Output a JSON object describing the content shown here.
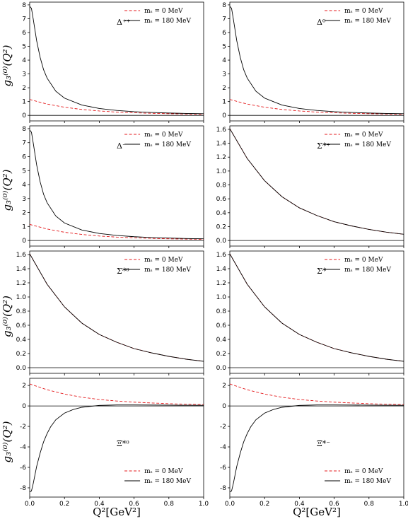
{
  "figure": {
    "ylabel": "g₃⁽⁰⁾(Q²)",
    "xlabel": "Q²[GeV²]",
    "legend_labels": [
      "mₛ = 0 MeV",
      "mₛ = 180 MeV"
    ],
    "colors": {
      "ms0": "#e41a1c",
      "ms180": "#000000"
    }
  },
  "chart_data": [
    {
      "type": "line",
      "annotation": "Δ⁺⁺",
      "legend": "top-right",
      "xlim": [
        0,
        1
      ],
      "ylim": [
        -0.4,
        8.2
      ],
      "xticks": [
        0.0,
        0.2,
        0.4,
        0.6,
        0.8,
        1.0
      ],
      "yticks": [
        0,
        1,
        2,
        3,
        4,
        5,
        6,
        7,
        8
      ],
      "series": [
        {
          "name": "mₛ = 0 MeV",
          "style": "dashed",
          "x": [
            0,
            0.1,
            0.2,
            0.3,
            0.4,
            0.5,
            0.6,
            0.7,
            0.8,
            0.9,
            1.0
          ],
          "y": [
            1.15,
            0.82,
            0.59,
            0.43,
            0.32,
            0.24,
            0.19,
            0.15,
            0.12,
            0.1,
            0.08
          ]
        },
        {
          "name": "mₛ = 180 MeV",
          "style": "solid",
          "x": [
            0,
            0.01,
            0.02,
            0.04,
            0.06,
            0.08,
            0.1,
            0.15,
            0.2,
            0.3,
            0.4,
            0.5,
            0.6,
            0.7,
            0.8,
            0.9,
            1.0
          ],
          "y": [
            7.9,
            7.75,
            7.0,
            5.4,
            4.2,
            3.3,
            2.7,
            1.75,
            1.25,
            0.75,
            0.5,
            0.36,
            0.27,
            0.21,
            0.17,
            0.14,
            0.12
          ]
        }
      ]
    },
    {
      "type": "line",
      "annotation": "Δ⁰",
      "legend": "top-right",
      "xlim": [
        0,
        1
      ],
      "ylim": [
        -0.4,
        8.2
      ],
      "xticks": [
        0.0,
        0.2,
        0.4,
        0.6,
        0.8,
        1.0
      ],
      "yticks": [
        0,
        1,
        2,
        3,
        4,
        5,
        6,
        7,
        8
      ],
      "series": [
        {
          "name": "mₛ = 0 MeV",
          "style": "dashed",
          "x": [
            0,
            0.1,
            0.2,
            0.3,
            0.4,
            0.5,
            0.6,
            0.7,
            0.8,
            0.9,
            1.0
          ],
          "y": [
            1.15,
            0.82,
            0.59,
            0.43,
            0.32,
            0.24,
            0.19,
            0.15,
            0.12,
            0.1,
            0.08
          ]
        },
        {
          "name": "mₛ = 180 MeV",
          "style": "solid",
          "x": [
            0,
            0.01,
            0.02,
            0.04,
            0.06,
            0.08,
            0.1,
            0.15,
            0.2,
            0.3,
            0.4,
            0.5,
            0.6,
            0.7,
            0.8,
            0.9,
            1.0
          ],
          "y": [
            7.9,
            7.75,
            7.0,
            5.4,
            4.2,
            3.3,
            2.7,
            1.75,
            1.25,
            0.75,
            0.5,
            0.36,
            0.27,
            0.21,
            0.17,
            0.14,
            0.12
          ]
        }
      ]
    },
    {
      "type": "line",
      "annotation": "Δ⁻",
      "legend": "top-right",
      "xlim": [
        0,
        1
      ],
      "ylim": [
        -0.4,
        8.2
      ],
      "xticks": [
        0.0,
        0.2,
        0.4,
        0.6,
        0.8,
        1.0
      ],
      "yticks": [
        0,
        1,
        2,
        3,
        4,
        5,
        6,
        7,
        8
      ],
      "series": [
        {
          "name": "mₛ = 0 MeV",
          "style": "dashed",
          "x": [
            0,
            0.1,
            0.2,
            0.3,
            0.4,
            0.5,
            0.6,
            0.7,
            0.8,
            0.9,
            1.0
          ],
          "y": [
            1.15,
            0.82,
            0.59,
            0.43,
            0.32,
            0.24,
            0.19,
            0.15,
            0.12,
            0.1,
            0.08
          ]
        },
        {
          "name": "mₛ = 180 MeV",
          "style": "solid",
          "x": [
            0,
            0.01,
            0.02,
            0.04,
            0.06,
            0.08,
            0.1,
            0.15,
            0.2,
            0.3,
            0.4,
            0.5,
            0.6,
            0.7,
            0.8,
            0.9,
            1.0
          ],
          "y": [
            7.9,
            7.75,
            7.0,
            5.4,
            4.2,
            3.3,
            2.7,
            1.75,
            1.25,
            0.75,
            0.5,
            0.36,
            0.27,
            0.21,
            0.17,
            0.14,
            0.12
          ]
        }
      ]
    },
    {
      "type": "line",
      "annotation": "Σ*⁺",
      "legend": "top-right",
      "xlim": [
        0,
        1
      ],
      "ylim": [
        -0.08,
        1.65
      ],
      "xticks": [
        0.0,
        0.2,
        0.4,
        0.6,
        0.8,
        1.0
      ],
      "yticks": [
        0.0,
        0.2,
        0.4,
        0.6,
        0.8,
        1.0,
        1.2,
        1.4,
        1.6
      ],
      "series": [
        {
          "name": "mₛ = 0 MeV",
          "style": "dashed",
          "x": [
            0,
            0.1,
            0.2,
            0.3,
            0.4,
            0.5,
            0.6,
            0.7,
            0.8,
            0.9,
            1.0
          ],
          "y": [
            1.61,
            1.18,
            0.86,
            0.63,
            0.47,
            0.36,
            0.27,
            0.21,
            0.16,
            0.12,
            0.09
          ]
        },
        {
          "name": "mₛ = 180 MeV",
          "style": "solid",
          "x": [
            0,
            0.1,
            0.2,
            0.3,
            0.4,
            0.5,
            0.6,
            0.7,
            0.8,
            0.9,
            1.0
          ],
          "y": [
            1.61,
            1.18,
            0.86,
            0.63,
            0.47,
            0.36,
            0.27,
            0.21,
            0.16,
            0.12,
            0.09
          ]
        }
      ]
    },
    {
      "type": "line",
      "annotation": "Σ*⁰",
      "legend": "top-right",
      "xlim": [
        0,
        1
      ],
      "ylim": [
        -0.08,
        1.65
      ],
      "xticks": [
        0.0,
        0.2,
        0.4,
        0.6,
        0.8,
        1.0
      ],
      "yticks": [
        0.0,
        0.2,
        0.4,
        0.6,
        0.8,
        1.0,
        1.2,
        1.4,
        1.6
      ],
      "series": [
        {
          "name": "mₛ = 0 MeV",
          "style": "dashed",
          "x": [
            0,
            0.1,
            0.2,
            0.3,
            0.4,
            0.5,
            0.6,
            0.7,
            0.8,
            0.9,
            1.0
          ],
          "y": [
            1.61,
            1.18,
            0.86,
            0.63,
            0.47,
            0.36,
            0.27,
            0.21,
            0.16,
            0.12,
            0.09
          ]
        },
        {
          "name": "mₛ = 180 MeV",
          "style": "solid",
          "x": [
            0,
            0.1,
            0.2,
            0.3,
            0.4,
            0.5,
            0.6,
            0.7,
            0.8,
            0.9,
            1.0
          ],
          "y": [
            1.61,
            1.18,
            0.86,
            0.63,
            0.47,
            0.36,
            0.27,
            0.21,
            0.16,
            0.12,
            0.09
          ]
        }
      ]
    },
    {
      "type": "line",
      "annotation": "Σ*⁻",
      "legend": "top-right",
      "xlim": [
        0,
        1
      ],
      "ylim": [
        -0.08,
        1.65
      ],
      "xticks": [
        0.0,
        0.2,
        0.4,
        0.6,
        0.8,
        1.0
      ],
      "yticks": [
        0.0,
        0.2,
        0.4,
        0.6,
        0.8,
        1.0,
        1.2,
        1.4,
        1.6
      ],
      "series": [
        {
          "name": "mₛ = 0 MeV",
          "style": "dashed",
          "x": [
            0,
            0.1,
            0.2,
            0.3,
            0.4,
            0.5,
            0.6,
            0.7,
            0.8,
            0.9,
            1.0
          ],
          "y": [
            1.61,
            1.18,
            0.86,
            0.63,
            0.47,
            0.36,
            0.27,
            0.21,
            0.16,
            0.12,
            0.09
          ]
        },
        {
          "name": "mₛ = 180 MeV",
          "style": "solid",
          "x": [
            0,
            0.1,
            0.2,
            0.3,
            0.4,
            0.5,
            0.6,
            0.7,
            0.8,
            0.9,
            1.0
          ],
          "y": [
            1.61,
            1.18,
            0.86,
            0.63,
            0.47,
            0.36,
            0.27,
            0.21,
            0.16,
            0.12,
            0.09
          ]
        }
      ]
    },
    {
      "type": "line",
      "annotation": "Ξ*⁰",
      "legend": "bottom-right",
      "xlim": [
        0,
        1
      ],
      "ylim": [
        -8.9,
        2.7
      ],
      "xticks": [
        0.0,
        0.2,
        0.4,
        0.6,
        0.8,
        1.0
      ],
      "yticks": [
        -8,
        -6,
        -4,
        -2,
        0,
        2
      ],
      "series": [
        {
          "name": "mₛ = 0 MeV",
          "style": "dashed",
          "x": [
            0,
            0.1,
            0.2,
            0.3,
            0.4,
            0.5,
            0.6,
            0.7,
            0.8,
            0.9,
            1.0
          ],
          "y": [
            2.15,
            1.58,
            1.16,
            0.85,
            0.63,
            0.48,
            0.37,
            0.29,
            0.22,
            0.17,
            0.13
          ]
        },
        {
          "name": "mₛ = 180 MeV",
          "style": "solid",
          "x": [
            0,
            0.01,
            0.02,
            0.04,
            0.06,
            0.08,
            0.1,
            0.12,
            0.15,
            0.2,
            0.25,
            0.3,
            0.4,
            0.5,
            0.6,
            0.7,
            0.8,
            0.9,
            1.0
          ],
          "y": [
            -8.4,
            -8.3,
            -7.6,
            -5.9,
            -4.6,
            -3.5,
            -2.7,
            -2.05,
            -1.35,
            -0.7,
            -0.35,
            -0.13,
            0.05,
            0.1,
            0.1,
            0.09,
            0.08,
            0.07,
            0.06
          ]
        }
      ]
    },
    {
      "type": "line",
      "annotation": "Ξ*⁻",
      "legend": "bottom-right",
      "xlim": [
        0,
        1
      ],
      "ylim": [
        -8.9,
        2.7
      ],
      "xticks": [
        0.0,
        0.2,
        0.4,
        0.6,
        0.8,
        1.0
      ],
      "yticks": [
        -8,
        -6,
        -4,
        -2,
        0,
        2
      ],
      "series": [
        {
          "name": "mₛ = 0 MeV",
          "style": "dashed",
          "x": [
            0,
            0.1,
            0.2,
            0.3,
            0.4,
            0.5,
            0.6,
            0.7,
            0.8,
            0.9,
            1.0
          ],
          "y": [
            2.15,
            1.58,
            1.16,
            0.85,
            0.63,
            0.48,
            0.37,
            0.29,
            0.22,
            0.17,
            0.13
          ]
        },
        {
          "name": "mₛ = 180 MeV",
          "style": "solid",
          "x": [
            0,
            0.01,
            0.02,
            0.04,
            0.06,
            0.08,
            0.1,
            0.12,
            0.15,
            0.2,
            0.25,
            0.3,
            0.4,
            0.5,
            0.6,
            0.7,
            0.8,
            0.9,
            1.0
          ],
          "y": [
            -8.4,
            -8.3,
            -7.6,
            -5.9,
            -4.6,
            -3.5,
            -2.7,
            -2.05,
            -1.35,
            -0.7,
            -0.35,
            -0.13,
            0.05,
            0.1,
            0.1,
            0.09,
            0.08,
            0.07,
            0.06
          ]
        }
      ]
    }
  ]
}
